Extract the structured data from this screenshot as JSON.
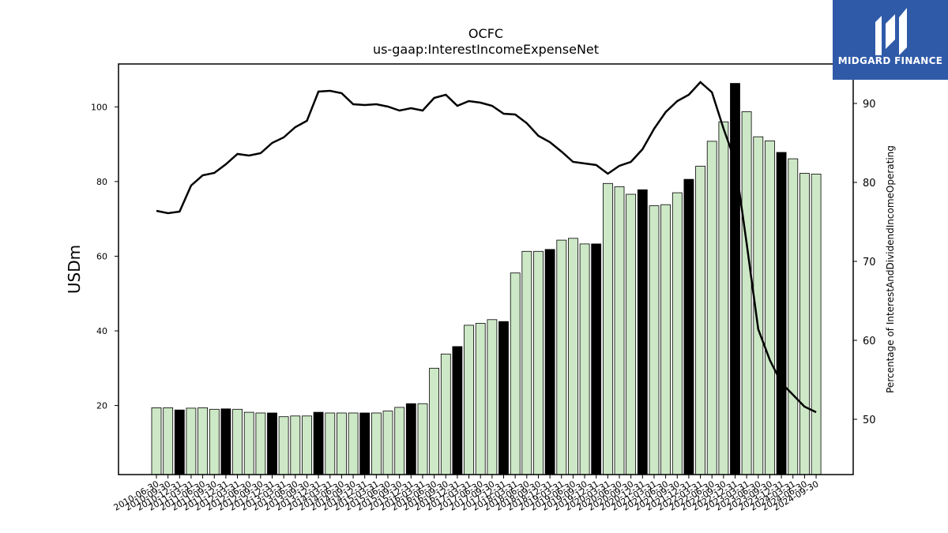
{
  "brand": {
    "name": "MIDGARD FINANCE",
    "bg": "#2f5aa8"
  },
  "chart_data": {
    "type": "bar",
    "title": "OCFC",
    "subtitle": "us-gaap:InterestIncomeExpenseNet",
    "ylabel": "USDm",
    "y2label": "Percentage of InterestAndDividendIncomeOperating",
    "ylim": [
      1.5,
      111.5
    ],
    "y2lim": [
      43,
      95
    ],
    "yticks": [
      20,
      40,
      60,
      80,
      100
    ],
    "y2ticks": [
      50,
      60,
      70,
      80,
      90
    ],
    "colors": {
      "bar": "#cde8c6",
      "bar_highlight": "#000000",
      "line": "#000000"
    },
    "categories": [
      "2010-06-30",
      "2010-09-30",
      "2010-12-31",
      "2011-03-31",
      "2011-06-30",
      "2011-09-30",
      "2011-12-31",
      "2012-03-31",
      "2012-06-30",
      "2012-09-30",
      "2012-12-31",
      "2013-03-31",
      "2013-06-30",
      "2013-09-30",
      "2013-12-31",
      "2014-03-31",
      "2014-06-30",
      "2014-09-30",
      "2014-12-31",
      "2015-03-31",
      "2015-06-30",
      "2015-09-30",
      "2015-12-31",
      "2016-03-31",
      "2016-06-30",
      "2016-09-30",
      "2016-12-31",
      "2017-03-31",
      "2017-06-30",
      "2017-09-30",
      "2017-12-31",
      "2018-03-31",
      "2018-06-30",
      "2018-09-30",
      "2018-12-31",
      "2019-03-31",
      "2019-06-30",
      "2019-09-30",
      "2019-12-31",
      "2020-03-31",
      "2020-06-30",
      "2020-09-30",
      "2020-12-31",
      "2021-03-31",
      "2021-06-30",
      "2021-09-30",
      "2021-12-31",
      "2022-03-31",
      "2022-06-30",
      "2022-09-30",
      "2022-12-31",
      "2023-03-31",
      "2023-06-30",
      "2023-09-30",
      "2023-12-31",
      "2024-03-31",
      "2024-06-30",
      "2024-09-30"
    ],
    "series": [
      {
        "type": "bar",
        "values": [
          19.4,
          19.4,
          18.8,
          19.3,
          19.4,
          19.0,
          19.1,
          19.0,
          18.2,
          18.0,
          18.0,
          17.0,
          17.2,
          17.2,
          18.2,
          18.0,
          18.0,
          18.0,
          18.0,
          18.0,
          18.5,
          19.5,
          20.5,
          20.5,
          30.0,
          33.8,
          35.8,
          41.5,
          42.0,
          43.0,
          42.5,
          55.5,
          61.3,
          61.3,
          61.8,
          64.3,
          64.8,
          63.3,
          63.3,
          79.5,
          78.6,
          76.6,
          77.8,
          73.5,
          73.8,
          77.0,
          80.6,
          84.1,
          90.8,
          96.0,
          106.3,
          98.7,
          92.0,
          90.9,
          87.8,
          86.1,
          82.2,
          82.0
        ]
      },
      {
        "type": "line",
        "axis": "right",
        "values": [
          76.4,
          76.1,
          76.3,
          79.6,
          80.9,
          81.2,
          82.3,
          83.6,
          83.4,
          83.7,
          85.0,
          85.7,
          87.0,
          87.8,
          91.5,
          91.6,
          91.3,
          89.9,
          89.8,
          89.9,
          89.6,
          89.1,
          89.4,
          89.1,
          90.7,
          91.1,
          89.7,
          90.3,
          90.1,
          89.7,
          88.7,
          88.6,
          87.5,
          85.9,
          85.1,
          83.9,
          82.6,
          82.4,
          82.2,
          81.1,
          82.1,
          82.6,
          84.2,
          86.8,
          88.9,
          90.3,
          91.1,
          92.7,
          91.4,
          86.8,
          82.7,
          72.3,
          61.4,
          57.5,
          54.6,
          53.1,
          51.6,
          50.9
        ]
      }
    ],
    "highlight_every": 4,
    "highlight_start": 2
  }
}
